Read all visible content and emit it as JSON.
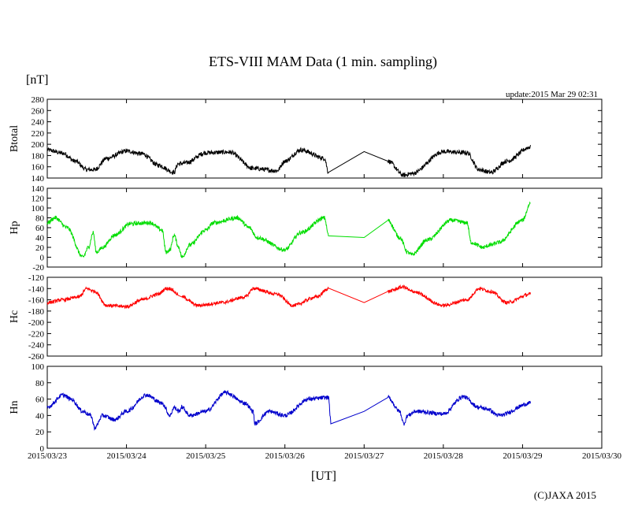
{
  "chart_data": {
    "type": "line",
    "title": "ETS-VIII MAM Data (1 min. sampling)",
    "unit_label": "[nT]",
    "update_text": "update:2015 Mar 29 02:31",
    "xlabel": "[UT]",
    "copyright": "(C)JAXA 2015",
    "x_tick_labels": [
      "2015/03/23",
      "2015/03/24",
      "2015/03/25",
      "2015/03/26",
      "2015/03/27",
      "2015/03/28",
      "2015/03/29",
      "2015/03/30"
    ],
    "xlim": [
      0,
      7
    ],
    "panels": [
      {
        "name": "Btotal",
        "ylabel": "Btotal",
        "color": "#000000",
        "ylim": [
          140,
          280
        ],
        "yticks": [
          140,
          160,
          180,
          200,
          220,
          240,
          260,
          280
        ],
        "noise": 4,
        "x": [
          0.0,
          0.2,
          0.35,
          0.5,
          0.6,
          0.75,
          1.0,
          1.2,
          1.4,
          1.6,
          1.65,
          1.75,
          2.0,
          2.3,
          2.6,
          2.9,
          3.0,
          3.2,
          3.5,
          3.55,
          4.0,
          4.3,
          4.5,
          4.6,
          5.0,
          5.3,
          5.45,
          5.6,
          5.8,
          6.1
        ],
        "y": [
          190,
          184,
          170,
          155,
          155,
          175,
          188,
          183,
          163,
          150,
          165,
          167,
          185,
          186,
          157,
          153,
          170,
          190,
          175,
          150,
          187,
          170,
          145,
          148,
          187,
          185,
          155,
          150,
          170,
          195
        ],
        "gaps": [
          [
            3.55,
            4.0
          ],
          [
            4.0,
            4.3
          ]
        ]
      },
      {
        "name": "Hp",
        "ylabel": "Hp",
        "color": "#00dd00",
        "ylim": [
          -20,
          140
        ],
        "yticks": [
          -20,
          0,
          20,
          40,
          60,
          80,
          100,
          120,
          140
        ],
        "noise": 4,
        "x": [
          0.0,
          0.1,
          0.25,
          0.45,
          0.52,
          0.58,
          0.62,
          0.7,
          0.85,
          1.05,
          1.3,
          1.45,
          1.5,
          1.55,
          1.6,
          1.66,
          1.7,
          1.8,
          2.0,
          2.1,
          2.4,
          2.55,
          2.65,
          3.0,
          3.2,
          3.5,
          3.55,
          4.0,
          4.3,
          4.45,
          4.55,
          4.6,
          4.8,
          5.1,
          5.3,
          5.35,
          5.5,
          5.6,
          5.7,
          6.0,
          6.1
        ],
        "y": [
          70,
          80,
          60,
          0,
          20,
          50,
          10,
          20,
          45,
          68,
          70,
          55,
          10,
          15,
          45,
          20,
          0,
          25,
          55,
          70,
          80,
          60,
          40,
          15,
          50,
          80,
          45,
          40,
          75,
          40,
          10,
          5,
          35,
          75,
          70,
          30,
          20,
          25,
          30,
          75,
          110
        ],
        "gaps": [
          [
            3.55,
            4.0
          ],
          [
            4.0,
            4.3
          ]
        ]
      },
      {
        "name": "Hc",
        "ylabel": "Hc",
        "color": "#ff0000",
        "ylim": [
          -260,
          -120
        ],
        "yticks": [
          -260,
          -240,
          -220,
          -200,
          -180,
          -160,
          -140,
          -120
        ],
        "noise": 3,
        "x": [
          0.0,
          0.2,
          0.4,
          0.5,
          0.6,
          0.75,
          1.0,
          1.2,
          1.4,
          1.5,
          1.55,
          1.65,
          1.7,
          1.9,
          2.2,
          2.5,
          2.6,
          2.9,
          3.1,
          3.4,
          3.55,
          4.0,
          4.3,
          4.5,
          4.6,
          5.0,
          5.3,
          5.45,
          5.6,
          5.8,
          6.1
        ],
        "y": [
          -165,
          -160,
          -155,
          -140,
          -145,
          -170,
          -172,
          -160,
          -150,
          -140,
          -140,
          -150,
          -155,
          -170,
          -165,
          -155,
          -140,
          -150,
          -170,
          -155,
          -140,
          -165,
          -145,
          -137,
          -145,
          -170,
          -160,
          -140,
          -145,
          -165,
          -150
        ],
        "gaps": [
          [
            3.55,
            4.0
          ],
          [
            4.0,
            4.3
          ],
          [
            1.65,
            1.7
          ]
        ]
      },
      {
        "name": "Hn",
        "ylabel": "Hn",
        "color": "#0000cc",
        "ylim": [
          0,
          100
        ],
        "yticks": [
          0,
          20,
          40,
          60,
          80,
          100
        ],
        "noise": 2.5,
        "x": [
          0.0,
          0.2,
          0.3,
          0.45,
          0.55,
          0.6,
          0.7,
          0.85,
          1.0,
          1.25,
          1.45,
          1.55,
          1.6,
          1.66,
          1.7,
          1.8,
          2.0,
          2.25,
          2.5,
          2.6,
          2.62,
          2.8,
          3.0,
          3.3,
          3.55,
          3.58,
          4.0,
          4.3,
          4.45,
          4.5,
          4.55,
          4.65,
          5.0,
          5.25,
          5.45,
          5.55,
          5.7,
          6.1
        ],
        "y": [
          50,
          65,
          60,
          45,
          40,
          25,
          40,
          35,
          45,
          65,
          55,
          40,
          50,
          45,
          50,
          40,
          45,
          68,
          55,
          45,
          30,
          45,
          40,
          60,
          62,
          32,
          45,
          62,
          45,
          30,
          40,
          45,
          42,
          63,
          50,
          48,
          40,
          55
        ],
        "gaps": [
          [
            3.58,
            4.0
          ],
          [
            4.0,
            4.3
          ]
        ]
      }
    ]
  }
}
